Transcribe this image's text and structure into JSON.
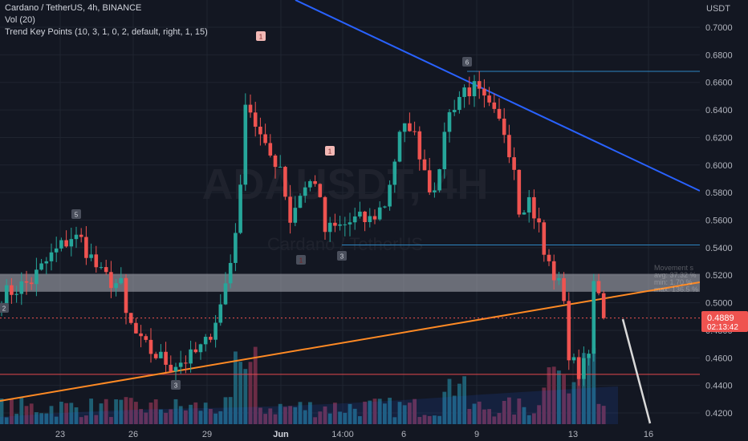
{
  "legend": {
    "title_line": "Cardano / TetherUS, 4h, BINANCE",
    "vol_line": "Vol (20)",
    "indicator_line": "Trend Key Points (10, 3, 1, 0, 2, default, right, 1, 15)"
  },
  "watermark": {
    "symbol": "ADAUSDT, 4H",
    "name": "Cardano / TetherUS"
  },
  "colors": {
    "background": "#131722",
    "up": "#26a69a",
    "down": "#ef5350",
    "volume_up": "#1e5f73",
    "volume_down": "#6b2c45",
    "trend_down_line": "#2962ff",
    "trend_up_line": "#ff8a24",
    "level_line_blue": "#2e86c1",
    "level_line_red": "#e5484d",
    "forecast_line": "#d9d9d9",
    "zone": "#b2b5be",
    "price_tag": "#ef5350"
  },
  "chart_data": {
    "type": "candlestick",
    "title": "Cardano / TetherUS, 4h, BINANCE",
    "ylabel": "USDT",
    "ylim": [
      0.41,
      0.715
    ],
    "y_ticks": [
      "0.7000",
      "0.6800",
      "0.6600",
      "0.6400",
      "0.6200",
      "0.6000",
      "0.5800",
      "0.5600",
      "0.5400",
      "0.5200",
      "0.5000",
      "0.4800",
      "0.4600",
      "0.4400",
      "0.4200"
    ],
    "x_ticks": [
      "23",
      "26",
      "29",
      "Jun",
      "14:00",
      "6",
      "9",
      "13",
      "16"
    ],
    "last_price": "0.4889",
    "countdown": "02:13:42",
    "zone": [
      0.508,
      0.521
    ],
    "horizontal_levels": [
      {
        "value": 0.668,
        "color": "blue"
      },
      {
        "value": 0.542,
        "color": "blue"
      },
      {
        "value": 0.448,
        "color": "red"
      }
    ],
    "key_points": [
      {
        "label": "1",
        "type": "high"
      },
      {
        "label": "1",
        "type": "high"
      },
      {
        "label": "6",
        "type": "high"
      },
      {
        "label": "5",
        "type": "high"
      },
      {
        "label": "1",
        "type": "low"
      },
      {
        "label": "3",
        "type": "low"
      },
      {
        "label": "3",
        "type": "low"
      },
      {
        "label": "2",
        "type": "low"
      }
    ],
    "movement_panel": [
      "Movement s",
      "avg: 37.32 %",
      "min: 1.70 %",
      "max: 136.5 %"
    ],
    "close_path": [
      [
        0,
        0.505
      ],
      [
        6,
        0.516
      ],
      [
        10,
        0.534
      ],
      [
        14,
        0.548
      ],
      [
        16,
        0.545
      ],
      [
        20,
        0.52
      ],
      [
        24,
        0.512
      ],
      [
        25,
        0.49
      ],
      [
        28,
        0.47
      ],
      [
        31,
        0.462
      ],
      [
        34,
        0.455
      ],
      [
        38,
        0.46
      ],
      [
        41,
        0.47
      ],
      [
        44,
        0.498
      ],
      [
        46,
        0.53
      ],
      [
        48,
        0.58
      ],
      [
        49,
        0.65
      ],
      [
        51,
        0.63
      ],
      [
        53,
        0.61
      ],
      [
        56,
        0.6
      ],
      [
        58,
        0.56
      ],
      [
        60,
        0.58
      ],
      [
        63,
        0.59
      ],
      [
        65,
        0.552
      ],
      [
        68,
        0.555
      ],
      [
        71,
        0.56
      ],
      [
        74,
        0.56
      ],
      [
        77,
        0.572
      ],
      [
        80,
        0.62
      ],
      [
        82,
        0.63
      ],
      [
        84,
        0.61
      ],
      [
        86,
        0.585
      ],
      [
        88,
        0.59
      ],
      [
        89,
        0.628
      ],
      [
        91,
        0.645
      ],
      [
        93,
        0.655
      ],
      [
        95,
        0.655
      ],
      [
        97,
        0.645
      ],
      [
        99,
        0.635
      ],
      [
        101,
        0.625
      ],
      [
        103,
        0.6
      ],
      [
        104,
        0.57
      ],
      [
        106,
        0.575
      ],
      [
        108,
        0.555
      ],
      [
        109,
        0.535
      ],
      [
        111,
        0.52
      ],
      [
        113,
        0.505
      ],
      [
        114,
        0.46
      ],
      [
        116,
        0.45
      ],
      [
        118,
        0.47
      ],
      [
        119,
        0.51
      ],
      [
        120,
        0.505
      ],
      [
        121,
        0.4889
      ]
    ]
  }
}
